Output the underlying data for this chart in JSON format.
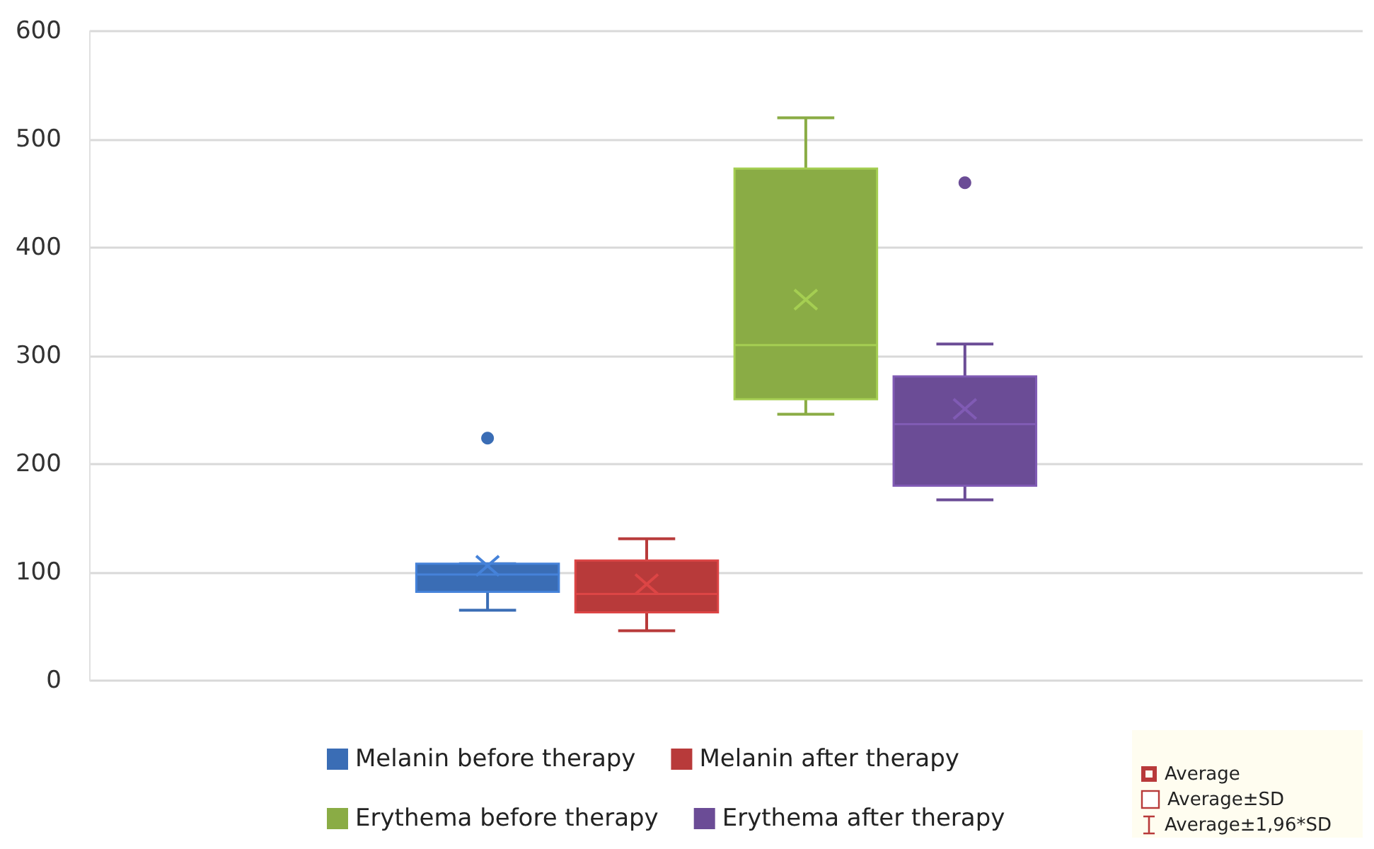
{
  "chart_data": {
    "type": "box",
    "categories": [
      null
    ],
    "series": [
      {
        "name": "Melanin before therapy",
        "color": "#3a6db5",
        "boxes": [
          {
            "low": 65,
            "q1": 82,
            "median": 98,
            "q3": 108,
            "high": 108,
            "mean": 106,
            "outliers": [
              224
            ]
          }
        ]
      },
      {
        "name": "Melanin after therapy",
        "color": "#b83a3a",
        "boxes": [
          {
            "low": 46,
            "q1": 63,
            "median": 80,
            "q3": 111,
            "high": 131,
            "mean": 89
          }
        ]
      },
      {
        "name": "Erythema before therapy",
        "color": "#8aac45",
        "boxes": [
          {
            "low": 246,
            "q1": 260,
            "median": 310,
            "q3": 473,
            "high": 520,
            "mean": 352
          }
        ]
      },
      {
        "name": "Erythema after therapy",
        "color": "#6b4c96",
        "boxes": [
          {
            "low": 167,
            "q1": 180,
            "median": 237,
            "q3": 281,
            "high": 311,
            "mean": 251,
            "outliers": [
              460
            ]
          }
        ]
      }
    ],
    "ylim": [
      0,
      600
    ],
    "yticks": [
      0,
      100,
      200,
      300,
      400,
      500,
      600
    ],
    "grid": "y",
    "legend": "bottom",
    "annotations": [
      "Average",
      "Average±SD",
      "Average±1,96*SD"
    ]
  }
}
